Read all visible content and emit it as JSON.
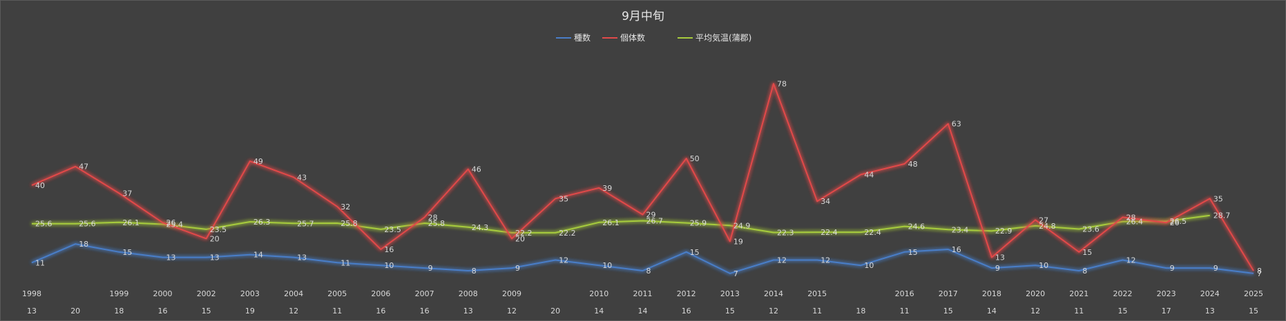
{
  "chart_data": {
    "type": "line",
    "title": "9月中旬",
    "xlabel": "",
    "ylabel": "",
    "ylim": [
      0,
      90
    ],
    "grid": false,
    "legend_position": "top-center",
    "x_years": [
      "1998",
      "",
      "1999",
      "2000",
      "2002",
      "2003",
      "2004",
      "2005",
      "2006",
      "2007",
      "2008",
      "2009",
      "",
      "2010",
      "2011",
      "2012",
      "2013",
      "2014",
      "2015",
      "",
      "2016",
      "2017",
      "2018",
      "2020",
      "2021",
      "2022",
      "2023",
      "2024",
      "2025"
    ],
    "x_counts": [
      "13",
      "20",
      "18",
      "16",
      "15",
      "19",
      "12",
      "11",
      "16",
      "16",
      "13",
      "12",
      "20",
      "14",
      "14",
      "16",
      "15",
      "12",
      "11",
      "18",
      "11",
      "15",
      "14",
      "12",
      "11",
      "15",
      "17",
      "13",
      "15"
    ],
    "series": [
      {
        "name": "種数",
        "color": "#4a7ec8",
        "values": [
          11,
          18,
          15,
          13,
          13,
          14,
          13,
          11,
          10,
          9,
          8,
          9,
          12,
          10,
          8,
          15,
          7,
          12,
          12,
          10,
          15,
          16,
          9,
          10,
          8,
          12,
          9,
          9,
          7
        ]
      },
      {
        "name": "個体数",
        "color": "#e24a4a",
        "values": [
          40,
          47,
          37,
          26,
          20,
          49,
          43,
          32,
          16,
          28,
          46,
          20,
          35,
          39,
          29,
          50,
          19,
          78,
          34,
          44,
          48,
          63,
          13,
          27,
          15,
          28,
          26,
          35,
          8
        ]
      },
      {
        "name": "平均気温(蒲郡)",
        "color": "#a7cc3d",
        "values": [
          25.6,
          25.6,
          26.1,
          25.4,
          23.5,
          26.3,
          25.7,
          25.8,
          23.5,
          25.8,
          24.3,
          22.2,
          22.2,
          26.1,
          26.7,
          25.9,
          24.9,
          22.3,
          22.4,
          22.4,
          24.6,
          23.4,
          22.9,
          24.8,
          23.6,
          26.4,
          26.5,
          28.7,
          null
        ]
      }
    ]
  }
}
